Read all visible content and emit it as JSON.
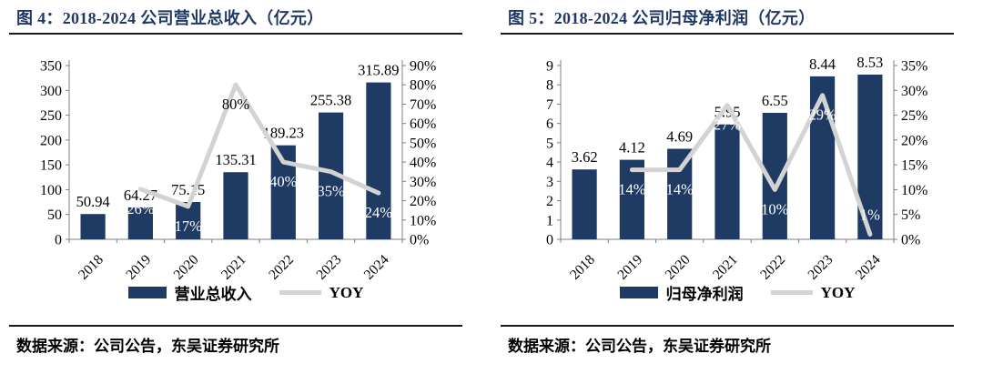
{
  "panels": [
    {
      "title": "图 4：2018-2024 公司营业总收入（亿元）",
      "source": "数据来源：公司公告，东吴证券研究所"
    },
    {
      "title": "图 5：2018-2024 公司归母净利润（亿元）",
      "source": "数据来源：公司公告，东吴证券研究所"
    }
  ],
  "colors": {
    "title": "#1f3864",
    "bar": "#1f3b63",
    "line": "#d3d3d3",
    "rule": "#1a1a1a",
    "axis_line": "#7f7f7f",
    "label_text": "#000000",
    "line_label_on_bar": "#ffffff"
  },
  "chart_data": [
    {
      "type": "bar",
      "title": "图 4：2018-2024 公司营业总收入（亿元）",
      "categories": [
        "2018",
        "2019",
        "2020",
        "2021",
        "2022",
        "2023",
        "2024"
      ],
      "series": [
        {
          "name": "营业总收入",
          "type": "bar",
          "axis": "left",
          "values": [
            50.94,
            64.27,
            75.15,
            135.31,
            189.23,
            255.38,
            315.89
          ],
          "labels": [
            "50.94",
            "64.27",
            "75.15",
            "135.31",
            "189.23",
            "255.38",
            "315.89"
          ]
        },
        {
          "name": "YOY",
          "type": "line",
          "axis": "right",
          "values": [
            null,
            26,
            17,
            80,
            40,
            35,
            24
          ],
          "labels": [
            null,
            "26%",
            "17%",
            "80%",
            "40%",
            "35%",
            "24%"
          ]
        }
      ],
      "left_axis": {
        "min": 0,
        "max": 350,
        "step": 50
      },
      "right_axis": {
        "min": 0,
        "max": 90,
        "step": 10,
        "suffix": "%"
      },
      "grid": false,
      "legend_position": "bottom"
    },
    {
      "type": "bar",
      "title": "图 5：2018-2024 公司归母净利润（亿元）",
      "categories": [
        "2018",
        "2019",
        "2020",
        "2021",
        "2022",
        "2023",
        "2024"
      ],
      "series": [
        {
          "name": "归母净利润",
          "type": "bar",
          "axis": "left",
          "values": [
            3.62,
            4.12,
            4.69,
            5.95,
            6.55,
            8.44,
            8.53
          ],
          "labels": [
            "3.62",
            "4.12",
            "4.69",
            "5.95",
            "6.55",
            "8.44",
            "8.53"
          ]
        },
        {
          "name": "YOY",
          "type": "line",
          "axis": "right",
          "values": [
            null,
            14,
            14,
            27,
            10,
            29,
            1
          ],
          "labels": [
            null,
            "14%",
            "14%",
            "27%",
            "10%",
            "29%",
            "1%"
          ]
        }
      ],
      "left_axis": {
        "min": 0,
        "max": 9,
        "step": 1
      },
      "right_axis": {
        "min": 0,
        "max": 35,
        "step": 5,
        "suffix": "%"
      },
      "grid": false,
      "legend_position": "bottom"
    }
  ]
}
